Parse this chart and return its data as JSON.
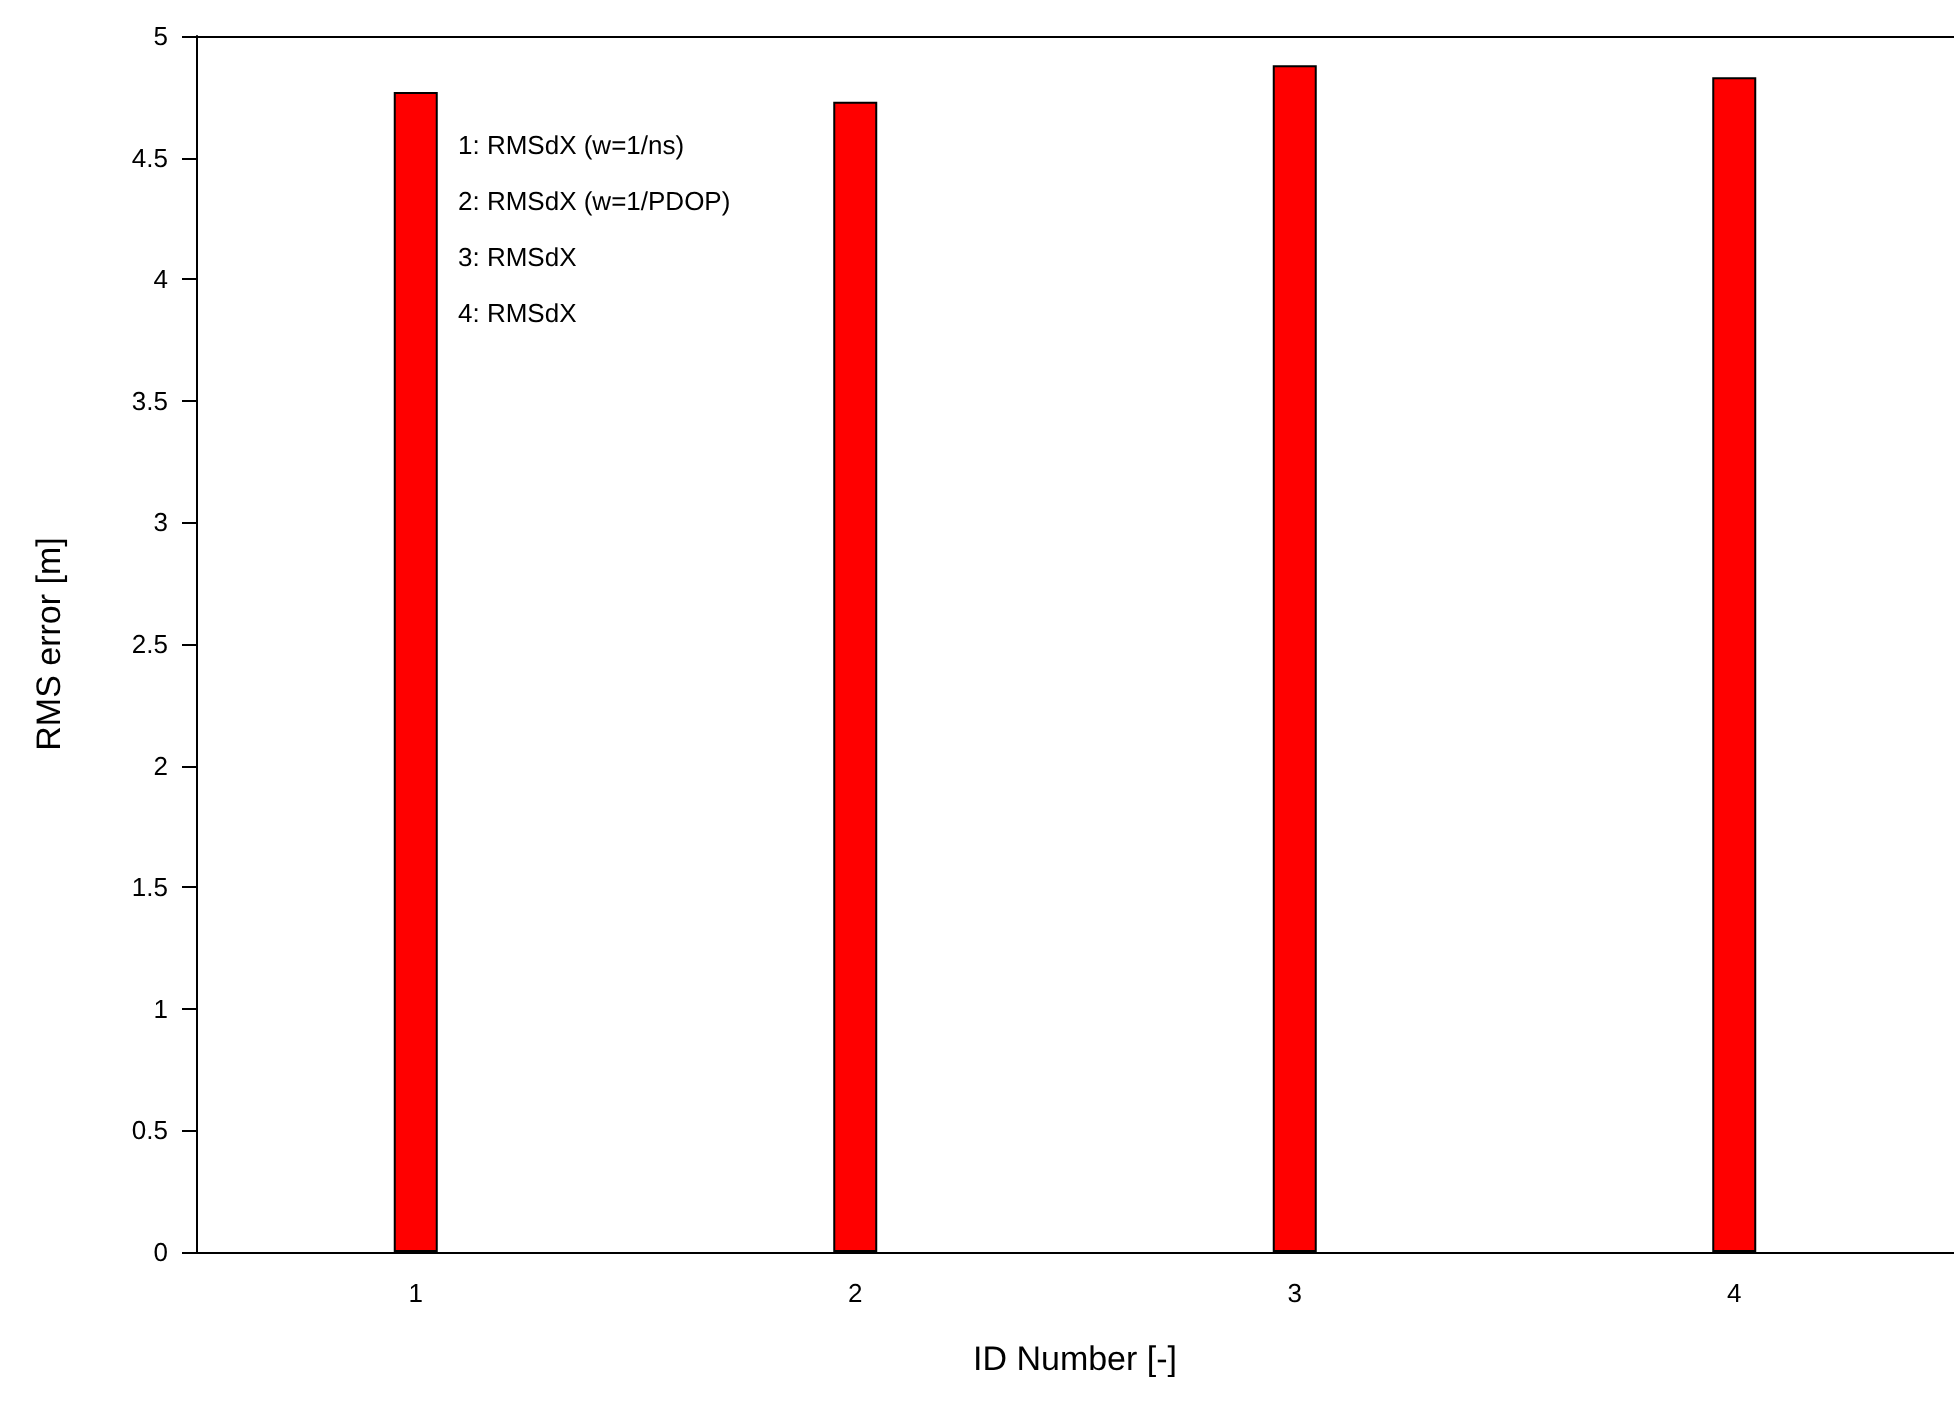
{
  "chart_data": {
    "type": "bar",
    "xlabel": "ID Number [-]",
    "ylabel": "RMS error [m]",
    "categories": [
      "1",
      "2",
      "3",
      "4"
    ],
    "values": [
      4.77,
      4.73,
      4.88,
      4.83
    ],
    "color": "#ff0000",
    "ylim": [
      0,
      5
    ],
    "yticks": [
      0,
      0.5,
      1,
      1.5,
      2,
      2.5,
      3,
      3.5,
      4,
      4.5,
      5
    ],
    "grid": false,
    "annotations": [
      "1: RMSdX (w=1/ns)",
      "2: RMSdX (w=1/PDOP)",
      "3: RMSdX",
      "4: RMSdX"
    ]
  }
}
